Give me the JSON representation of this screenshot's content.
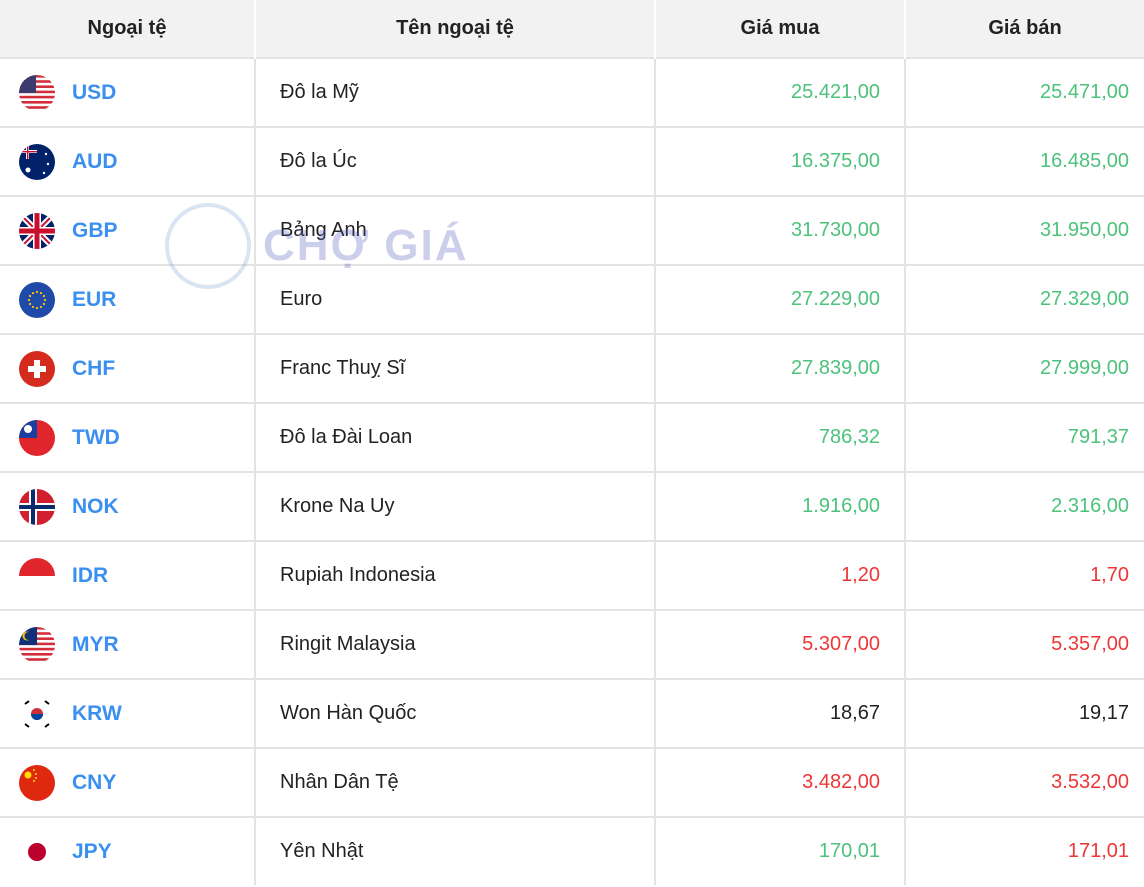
{
  "header": {
    "code": "Ngoại tệ",
    "name": "Tên ngoại tệ",
    "buy": "Giá mua",
    "sell": "Giá bán"
  },
  "watermark": "CHỢ GIÁ",
  "colors": {
    "up": "#4cc27b",
    "down": "#ee3636",
    "neutral": "#222222",
    "code": "#3b8ff0"
  },
  "rows": [
    {
      "code": "USD",
      "flag": "us-flag",
      "name": "Đô la Mỹ",
      "buy": "25.421,00",
      "sell": "25.471,00",
      "buy_trend": "green",
      "sell_trend": "green"
    },
    {
      "code": "AUD",
      "flag": "au-flag",
      "name": "Đô la Úc",
      "buy": "16.375,00",
      "sell": "16.485,00",
      "buy_trend": "green",
      "sell_trend": "green"
    },
    {
      "code": "GBP",
      "flag": "gb-flag",
      "name": "Bảng Anh",
      "buy": "31.730,00",
      "sell": "31.950,00",
      "buy_trend": "green",
      "sell_trend": "green"
    },
    {
      "code": "EUR",
      "flag": "eu-flag",
      "name": "Euro",
      "buy": "27.229,00",
      "sell": "27.329,00",
      "buy_trend": "green",
      "sell_trend": "green"
    },
    {
      "code": "CHF",
      "flag": "ch-flag",
      "name": "Franc Thuỵ Sĩ",
      "buy": "27.839,00",
      "sell": "27.999,00",
      "buy_trend": "green",
      "sell_trend": "green"
    },
    {
      "code": "TWD",
      "flag": "tw-flag",
      "name": "Đô la Đài Loan",
      "buy": "786,32",
      "sell": "791,37",
      "buy_trend": "green",
      "sell_trend": "green"
    },
    {
      "code": "NOK",
      "flag": "no-flag",
      "name": "Krone Na Uy",
      "buy": "1.916,00",
      "sell": "2.316,00",
      "buy_trend": "green",
      "sell_trend": "green"
    },
    {
      "code": "IDR",
      "flag": "id-flag",
      "name": "Rupiah Indonesia",
      "buy": "1,20",
      "sell": "1,70",
      "buy_trend": "red",
      "sell_trend": "red"
    },
    {
      "code": "MYR",
      "flag": "my-flag",
      "name": "Ringit Malaysia",
      "buy": "5.307,00",
      "sell": "5.357,00",
      "buy_trend": "red",
      "sell_trend": "red"
    },
    {
      "code": "KRW",
      "flag": "kr-flag",
      "name": "Won Hàn Quốc",
      "buy": "18,67",
      "sell": "19,17",
      "buy_trend": "neutral",
      "sell_trend": "neutral"
    },
    {
      "code": "CNY",
      "flag": "cn-flag",
      "name": "Nhân Dân Tệ",
      "buy": "3.482,00",
      "sell": "3.532,00",
      "buy_trend": "red",
      "sell_trend": "red"
    },
    {
      "code": "JPY",
      "flag": "jp-flag",
      "name": "Yên Nhật",
      "buy": "170,01",
      "sell": "171,01",
      "buy_trend": "green",
      "sell_trend": "red"
    }
  ]
}
